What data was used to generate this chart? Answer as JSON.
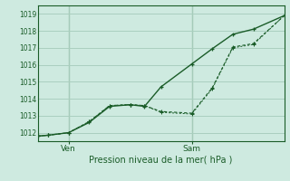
{
  "xlabel": "Pression niveau de la mer( hPa )",
  "background_color": "#ceeae0",
  "grid_color": "#aacfbf",
  "line_color": "#1a5c28",
  "ylim": [
    1011.5,
    1019.5
  ],
  "yticks": [
    1012,
    1013,
    1014,
    1015,
    1016,
    1017,
    1018,
    1019
  ],
  "xlim": [
    0,
    12
  ],
  "ven_x": 1.5,
  "sam_x": 7.5,
  "ven_label": "Ven",
  "sam_label": "Sam",
  "line1_x": [
    0,
    0.5,
    1.5,
    2.5,
    3.5,
    4.5,
    5.2,
    6.0,
    7.5,
    8.5,
    9.5,
    10.5,
    12
  ],
  "line1_y": [
    1011.8,
    1011.85,
    1012.0,
    1012.6,
    1013.55,
    1013.65,
    1013.55,
    1014.7,
    1016.05,
    1016.95,
    1017.8,
    1018.1,
    1018.9
  ],
  "line2_x": [
    0,
    0.5,
    1.5,
    2.5,
    3.5,
    4.5,
    5.2,
    6.0,
    7.5,
    8.5,
    9.5,
    10.5,
    12
  ],
  "line2_y": [
    1011.8,
    1011.85,
    1012.0,
    1012.65,
    1013.6,
    1013.65,
    1013.6,
    1013.25,
    1013.15,
    1014.65,
    1017.05,
    1017.25,
    1018.9
  ],
  "line3_x": [
    0,
    0.5,
    1.5,
    2.5,
    3.5,
    4.5,
    5.2,
    6.0,
    7.5,
    8.5,
    9.5,
    10.5,
    12
  ],
  "line3_y": [
    1011.8,
    1011.85,
    1012.0,
    1012.65,
    1013.6,
    1013.65,
    1013.6,
    1013.2,
    1013.1,
    1014.6,
    1017.0,
    1017.2,
    1018.9
  ],
  "figwidth": 3.2,
  "figheight": 2.0,
  "dpi": 100
}
